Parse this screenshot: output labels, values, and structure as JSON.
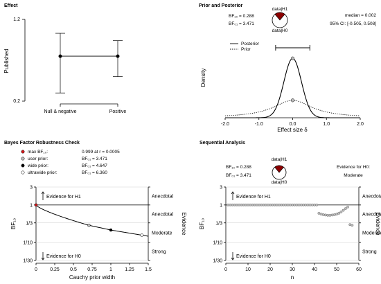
{
  "chart_data": [
    {
      "type": "errorbar",
      "title": "Effect",
      "ylabel": "Published",
      "categories": [
        "Null & negative",
        "Positive"
      ],
      "ylim": [
        0.2,
        1.2
      ],
      "yticks": [
        "1.2",
        "0.2"
      ],
      "means": [
        0.75,
        0.75
      ],
      "lower": [
        0.3,
        0.5
      ],
      "upper": [
        1.03,
        0.94
      ]
    },
    {
      "type": "line",
      "title": "Prior and Posterior",
      "xlabel": "Effect size δ",
      "ylabel": "Density",
      "xticks": [
        "-2.0",
        "-1.0",
        "0.0",
        "1.0",
        "2.0"
      ],
      "xlim": [
        -2.0,
        2.0
      ],
      "bf10": "BF₁₀ = 0.288",
      "bf01": "BF₀₁ = 3.471",
      "median": "median = 0.002",
      "ci": "95% CI: [-0.505, 0.508]",
      "ci_range": [
        -0.505,
        0.508
      ],
      "wheel_top": "data|H1",
      "wheel_bottom": "data|H0",
      "legend": [
        "Posterior",
        "Prior"
      ],
      "posterior_sd": 0.26,
      "prior_scale": 0.707,
      "ymax": 1.7
    },
    {
      "type": "line",
      "title": "Bayes Factor Robustness Check",
      "xlabel": "Cauchy prior width",
      "ylabel": "BF₁₀",
      "right_label": "Evidence",
      "xticks": [
        "0",
        "0.25",
        "0.5",
        "0.75",
        "1",
        "1.25",
        "1.5"
      ],
      "yticks": [
        "3",
        "1",
        "1/3",
        "1/10",
        "1/30"
      ],
      "evidence_labels": [
        "Anecdotal",
        "Anecdotal",
        "Moderate",
        "Strong"
      ],
      "arrow_h1": "Evidence for H1",
      "arrow_h0": "Evidence for H0",
      "legend": [
        {
          "label": "max BF₁₀:",
          "value": "0.999 at r = 0.0005"
        },
        {
          "label": "user prior:",
          "value": "BF₀₁ = 3.471"
        },
        {
          "label": "wide prior:",
          "value": "BF₀₁ = 4.647"
        },
        {
          "label": "ultrawide prior:",
          "value": "BF₀₁ = 6.360"
        }
      ],
      "points": [
        {
          "x": 0.0005,
          "bf": 0.999
        },
        {
          "x": 0.707,
          "bf": 0.288
        },
        {
          "x": 1.0,
          "bf": 0.215
        },
        {
          "x": 1.414,
          "bf": 0.157
        }
      ],
      "colors": {
        "max": "#d7191c",
        "user": "#bdbdbd",
        "wide": "#000000",
        "ultrawide": "#ffffff"
      }
    },
    {
      "type": "scatter",
      "title": "Sequential Analysis",
      "xlabel": "n",
      "ylabel": "BF₁₀",
      "right_label": "Evidence",
      "xticks": [
        "0",
        "10",
        "20",
        "30",
        "40",
        "50",
        "60"
      ],
      "yticks": [
        "3",
        "1",
        "1/3",
        "1/10",
        "1/30"
      ],
      "evidence_labels": [
        "Anecdotal",
        "Anecdotal",
        "Moderate",
        "Strong"
      ],
      "arrow_h1": "Evidence for H1",
      "arrow_h0": "Evidence for H0",
      "bf10": "BF₁₀ = 0.288",
      "bf01": "BF₀₁ = 3.471",
      "wheel_top": "data|H1",
      "wheel_bottom": "data|H0",
      "evidence_text": "Evidence for H0:",
      "evidence_level": "Moderate",
      "n_flat": 41,
      "tail": [
        0.6,
        0.57,
        0.55,
        0.54,
        0.53,
        0.53,
        0.54,
        0.55,
        0.57,
        0.6,
        0.65,
        0.72,
        0.8,
        0.88,
        0.3,
        0.288
      ]
    }
  ]
}
